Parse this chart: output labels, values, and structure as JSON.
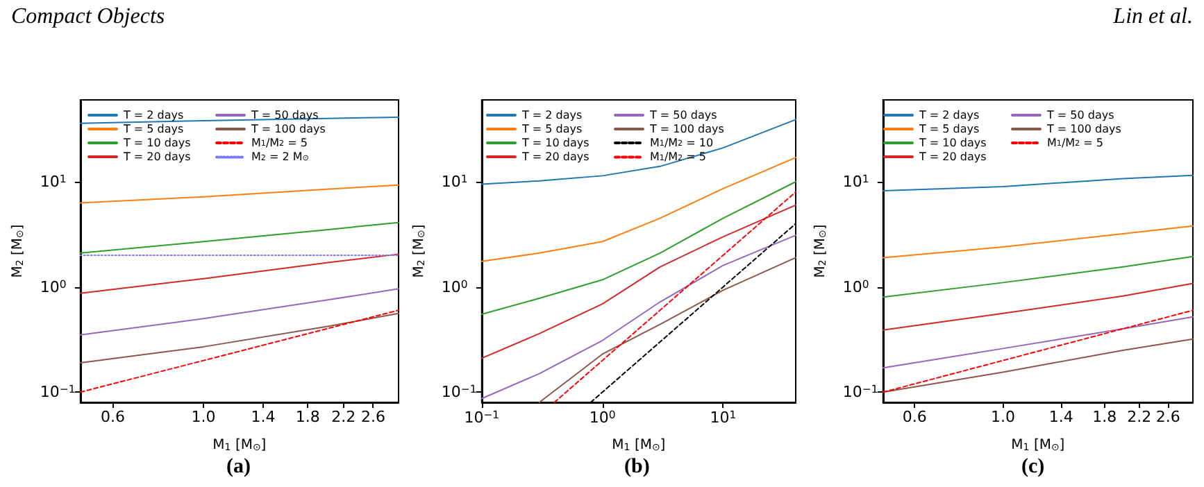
{
  "chart_data": [
    {
      "type": "line",
      "title": "(a)",
      "xlabel": "M$_{1}$ [M$_{⊙}$]",
      "ylabel": "M$_{2}$ [M$_{⊙}$]",
      "log": "xy",
      "xlim": [
        0.5,
        3
      ],
      "xticks": [
        0.6,
        {
          "value": 1,
          "label": "1.0"
        },
        1.4,
        1.8,
        2.2,
        2.6
      ],
      "ylim": [
        0.08,
        60
      ],
      "yticks": [
        {
          "value": 0.1,
          "label": "10$^{−1}$"
        },
        {
          "value": 1,
          "label": "10$^{0}$"
        },
        {
          "value": 10,
          "label": "10$^{1}$"
        }
      ],
      "grid": false,
      "legend": "top left",
      "marker": "none",
      "line_style": "solid",
      "annotations": [
        "Compact Objects"
      ],
      "x": [
        0.5,
        1,
        2,
        3
      ],
      "series": [
        {
          "name": "T = 2 days",
          "color": "#1f77b4",
          "values": [
            36,
            38,
            40,
            41
          ]
        },
        {
          "name": "T = 5 days",
          "color": "#ff7f0e",
          "values": [
            6.3,
            7.2,
            8.5,
            9.3
          ]
        },
        {
          "name": "T = 10 days",
          "color": "#2ca02c",
          "values": [
            2.1,
            2.7,
            3.5,
            4.1
          ]
        },
        {
          "name": "T = 20 days",
          "color": "#d62728",
          "values": [
            0.87,
            1.2,
            1.7,
            2.05
          ]
        },
        {
          "name": "T = 50 days",
          "color": "#9467bd",
          "values": [
            0.35,
            0.5,
            0.75,
            0.96
          ]
        },
        {
          "name": "T = 100 days",
          "color": "#8c564b",
          "values": [
            0.19,
            0.27,
            0.42,
            0.56
          ]
        },
        {
          "name": "M$_{1}$/M$_{2}$ = 5",
          "color": "#ff0000",
          "line_style": "dashed",
          "values": [
            0.1,
            0.2,
            0.4,
            0.6
          ]
        },
        {
          "name": "M$_{2}$ = 2 M$_{⊙}$",
          "color": "#7b7bff",
          "line_style": "dotted",
          "values": [
            2,
            2,
            2,
            2
          ]
        }
      ]
    },
    {
      "type": "line",
      "title": "(b)",
      "xlabel": "M$_{1}$ [M$_{⊙}$]",
      "ylabel": "M$_{2}$ [M$_{⊙}$]",
      "log": "xy",
      "xlim": [
        0.1,
        40
      ],
      "xticks": [
        {
          "value": 0.1,
          "label": "10$^{−1}$"
        },
        {
          "value": 1,
          "label": "10$^{0}$"
        },
        {
          "value": 10,
          "label": "10$^{1}$"
        }
      ],
      "ylim": [
        0.08,
        60
      ],
      "yticks": [
        {
          "value": 0.1,
          "label": "10$^{−1}$"
        },
        {
          "value": 1,
          "label": "10$^{0}$"
        },
        {
          "value": 10,
          "label": "10$^{1}$"
        }
      ],
      "grid": false,
      "legend": "top left",
      "marker": "none",
      "line_style": "solid",
      "x": [
        0.1,
        0.3,
        1,
        3,
        10,
        40
      ],
      "series": [
        {
          "name": "T = 2 days",
          "color": "#1f77b4",
          "values": [
            9.5,
            10.2,
            11.4,
            14,
            21,
            39
          ]
        },
        {
          "name": "T = 5 days",
          "color": "#ff7f0e",
          "values": [
            1.75,
            2.1,
            2.7,
            4.5,
            8.6,
            17
          ]
        },
        {
          "name": "T = 10 days",
          "color": "#2ca02c",
          "values": [
            0.55,
            0.78,
            1.17,
            2.1,
            4.5,
            10
          ]
        },
        {
          "name": "T = 20 days",
          "color": "#d62728",
          "values": [
            0.21,
            0.36,
            0.69,
            1.55,
            3,
            6
          ]
        },
        {
          "name": "T = 50 days",
          "color": "#9467bd",
          "values": [
            0.087,
            0.15,
            0.31,
            0.72,
            1.6,
            3.1
          ]
        },
        {
          "name": "T = 100 days",
          "color": "#8c564b",
          "values": [
            null,
            0.08,
            0.23,
            0.44,
            0.93,
            1.9
          ]
        },
        {
          "name": "M$_{1}$/M$_{2}$ = 10",
          "color": "#000000",
          "line_style": "dashed",
          "x": [
            0.8,
            1,
            3,
            10,
            40
          ],
          "values": [
            0.08,
            0.1,
            0.3,
            1,
            4
          ]
        },
        {
          "name": "M$_{1}$/M$_{2}$ = 5",
          "color": "#ff0000",
          "line_style": "dashed",
          "x": [
            0.4,
            1,
            3,
            10,
            40
          ],
          "values": [
            0.08,
            0.2,
            0.6,
            2,
            8
          ]
        }
      ]
    },
    {
      "type": "line",
      "title": "(c)",
      "xlabel": "M$_{1}$ [M$_{⊙}$]",
      "ylabel": "M$_{2}$ [M$_{⊙}$]",
      "log": "xy",
      "xlim": [
        0.5,
        3
      ],
      "xticks": [
        0.6,
        {
          "value": 1,
          "label": "1.0"
        },
        1.4,
        1.8,
        2.2,
        2.6
      ],
      "ylim": [
        0.08,
        60
      ],
      "yticks": [
        {
          "value": 0.1,
          "label": "10$^{−1}$"
        },
        {
          "value": 1,
          "label": "10$^{0}$"
        },
        {
          "value": 10,
          "label": "10$^{1}$"
        }
      ],
      "grid": false,
      "legend": "top left",
      "marker": "none",
      "line_style": "solid",
      "annotations": [
        "Lin et al."
      ],
      "x": [
        0.5,
        1,
        2,
        3
      ],
      "series": [
        {
          "name": "T = 2 days",
          "color": "#1f77b4",
          "values": [
            8.2,
            9,
            10.7,
            11.5
          ]
        },
        {
          "name": "T = 5 days",
          "color": "#ff7f0e",
          "values": [
            1.9,
            2.4,
            3.2,
            3.8
          ]
        },
        {
          "name": "T = 10 days",
          "color": "#2ca02c",
          "values": [
            0.8,
            1.1,
            1.55,
            1.95
          ]
        },
        {
          "name": "T = 20 days",
          "color": "#d62728",
          "values": [
            0.39,
            0.56,
            0.82,
            1.08
          ]
        },
        {
          "name": "T = 50 days",
          "color": "#9467bd",
          "values": [
            0.17,
            0.26,
            0.4,
            0.52
          ]
        },
        {
          "name": "T = 100 days",
          "color": "#8c564b",
          "values": [
            0.1,
            0.155,
            0.25,
            0.32
          ]
        },
        {
          "name": "M$_{1}$/M$_{2}$ = 5",
          "color": "#ff0000",
          "line_style": "dashed",
          "values": [
            0.1,
            0.2,
            0.4,
            0.6
          ]
        }
      ]
    }
  ]
}
